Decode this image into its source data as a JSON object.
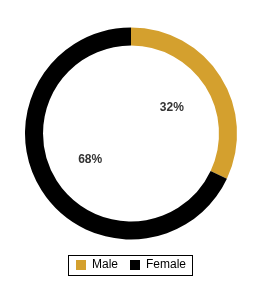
{
  "chart_data": {
    "type": "doughnut",
    "categories": [
      "Male",
      "Female"
    ],
    "values": [
      32,
      68
    ],
    "value_labels": [
      "32%",
      "68%"
    ],
    "colors": [
      "#D4A02E",
      "#000000"
    ],
    "legend": "bottom",
    "data_labels": true
  }
}
